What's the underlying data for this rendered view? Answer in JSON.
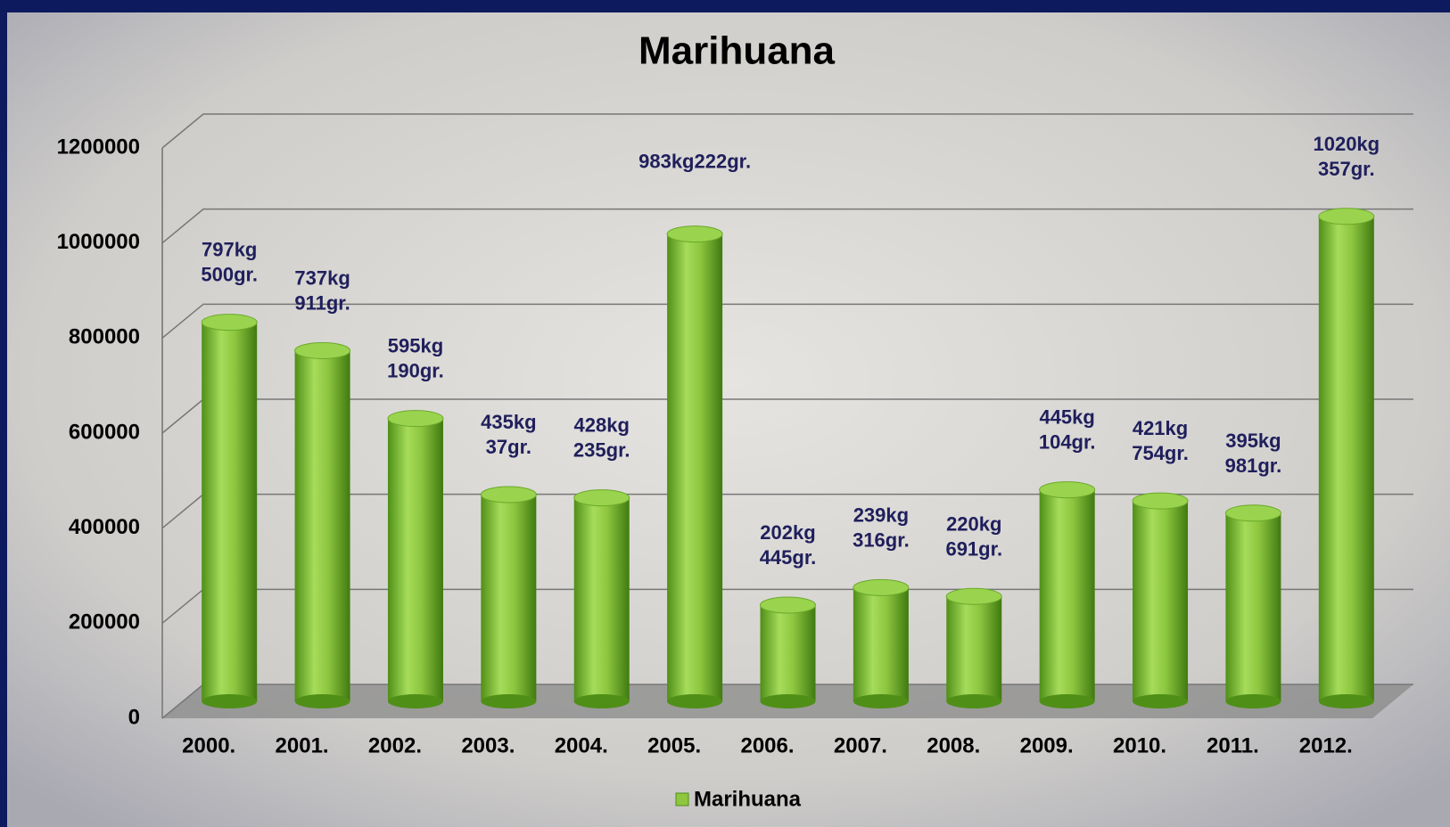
{
  "chart_data": {
    "type": "bar3d",
    "title": "Marihuana",
    "categories": [
      "2000.",
      "2001.",
      "2002.",
      "2003.",
      "2004.",
      "2005.",
      "2006.",
      "2007.",
      "2008.",
      "2009.",
      "2010.",
      "2011.",
      "2012."
    ],
    "series": [
      {
        "name": "Marihuana",
        "color": "#8dc63f",
        "values": [
          797500,
          737911,
          595190,
          435037,
          428235,
          983222,
          202445,
          239316,
          220691,
          445104,
          421754,
          395981,
          1020357
        ],
        "value_labels": [
          "797kg 500gr.",
          "737kg 911gr.",
          "595kg 190gr.",
          "435kg 37gr.",
          "428kg 235gr.",
          "983kg222gr.",
          "202kg 445gr.",
          "239kg 316gr.",
          "220kg 691gr.",
          "445kg 104gr.",
          "421kg 754gr.",
          "395kg 981gr.",
          "1020kg 357gr."
        ]
      }
    ],
    "ylim": [
      0,
      1200000
    ],
    "yticks": [
      0,
      200000,
      400000,
      600000,
      800000,
      1000000,
      1200000
    ],
    "grid": true,
    "legend": "bottom"
  }
}
